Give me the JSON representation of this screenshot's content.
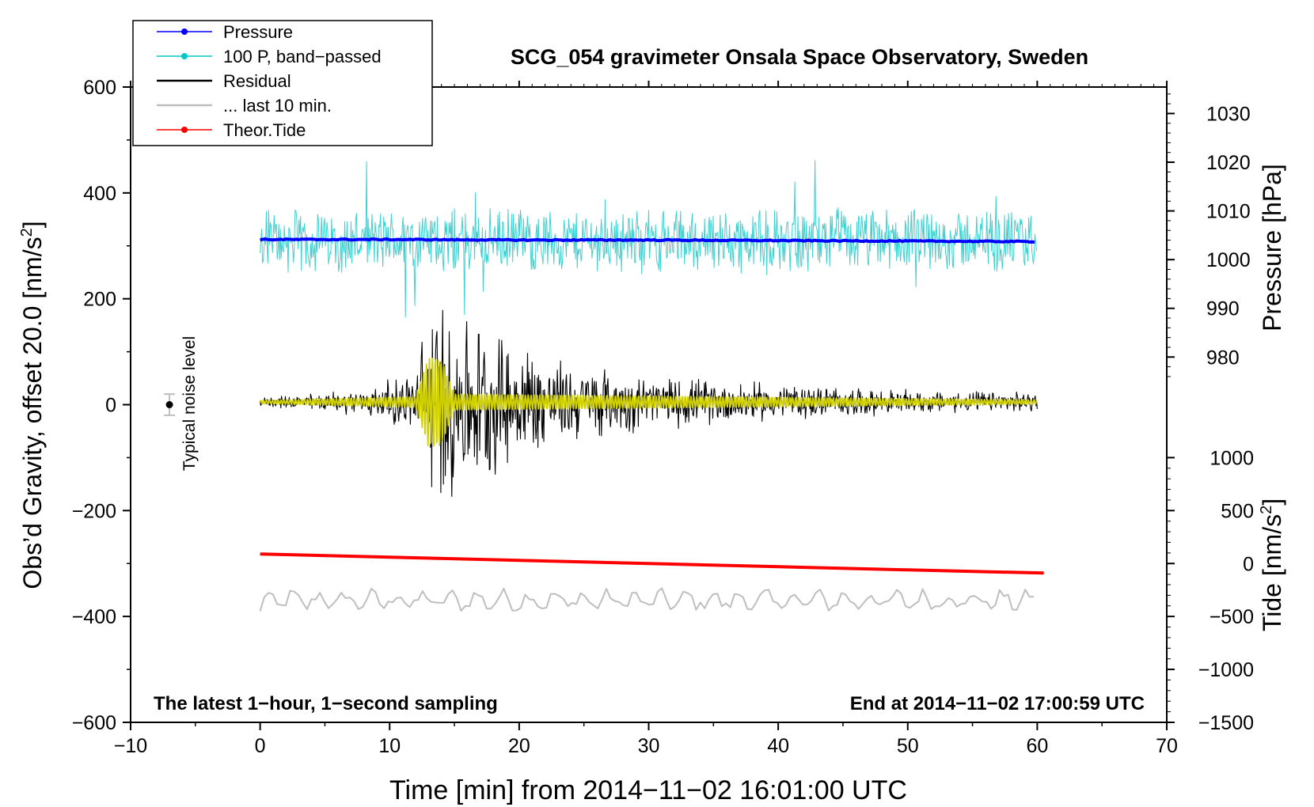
{
  "chart_data": {
    "type": "line",
    "title": "SCG_054 gravimeter Onsala Space Observatory, Sweden",
    "xlabel": "Time [min] from 2014−11−02 16:01:00 UTC",
    "ylabel_left_main": "Obs’d Gravity, offset 20.0 [nm/s",
    "ylabel_left_sup": "2",
    "ylabel_left_close": "]",
    "ylabel_pressure": "Pressure [hPa]",
    "ylabel_tide_main": "Tide [nm/s",
    "ylabel_tide_sup": "2",
    "ylabel_tide_close": "]",
    "xlim": [
      -10,
      70
    ],
    "ylim": [
      -600,
      600
    ],
    "x_ticks": [
      "−10",
      "0",
      "10",
      "20",
      "30",
      "40",
      "50",
      "60",
      "70"
    ],
    "y_ticks": [
      "−600",
      "−400",
      "−200",
      "0",
      "200",
      "400",
      "600"
    ],
    "pressure_ticks": [
      "1030",
      "1020",
      "1010",
      "1000",
      "990",
      "980"
    ],
    "tide_ticks": [
      "1000",
      "500",
      "0",
      "−500",
      "−1000",
      "−1500"
    ],
    "pressure_axis": {
      "ticks": [
        1030,
        1020,
        1010,
        1000,
        990,
        980
      ],
      "gravity_equiv": [
        550,
        458,
        366,
        274,
        182,
        90
      ]
    },
    "tide_axis": {
      "ticks": [
        1000,
        500,
        0,
        -500,
        -1000,
        -1500
      ],
      "gravity_equiv": [
        -100,
        -200,
        -300,
        -400,
        -500,
        -600
      ]
    },
    "annotation_left": "The latest 1−hour, 1−second sampling",
    "annotation_right": "End at 2014−11−02 17:00:59 UTC",
    "noise_label": "Typical noise level",
    "noise_bar": {
      "x": -7,
      "y": 0,
      "err": 20
    },
    "legend": [
      {
        "label": "Pressure",
        "color": "#0000ff",
        "marker": true
      },
      {
        "label": "100 P, band−passed",
        "color": "#00c8c8",
        "marker": true
      },
      {
        "label": "Residual",
        "color": "#000000",
        "marker": false
      },
      {
        "label": "... last 10 min.",
        "color": "#bebebe",
        "marker": false
      },
      {
        "label": "Theor.Tide",
        "color": "#ff0000",
        "marker": true
      }
    ],
    "series": [
      {
        "name": "Pressure",
        "color": "#0000ff",
        "x": [
          0,
          10,
          20,
          30,
          40,
          50,
          60
        ],
        "values": [
          312,
          312,
          311,
          311,
          310,
          309,
          308
        ]
      },
      {
        "name": "100 P, band-passed",
        "color": "#40d0d0",
        "x": [
          0,
          60
        ],
        "values": [
          310,
          310
        ],
        "amplitude": 55
      },
      {
        "name": "Residual",
        "color": "#000000",
        "x": [
          0,
          8,
          12,
          13,
          14,
          17,
          20,
          23,
          30,
          40,
          50,
          60
        ],
        "values": [
          5,
          5,
          5,
          5,
          5,
          5,
          5,
          5,
          5,
          5,
          5,
          5
        ],
        "amplitude": [
          8,
          25,
          60,
          190,
          200,
          150,
          120,
          80,
          50,
          35,
          22,
          18
        ]
      },
      {
        "name": "Yellow filtered",
        "color": "#d0d000",
        "x": [
          0,
          12,
          13,
          14,
          15,
          60
        ],
        "values": [
          5,
          5,
          5,
          5,
          5,
          5
        ],
        "amplitude": [
          3,
          10,
          85,
          80,
          15,
          4
        ]
      },
      {
        "name": "Theor.Tide",
        "color": "#ff0000",
        "x": [
          0,
          10,
          20,
          30,
          40,
          50,
          60.5
        ],
        "values": [
          -282,
          -288,
          -294,
          -300,
          -306,
          -312,
          -318
        ]
      },
      {
        "name": "... last 10 min.",
        "color": "#bebebe",
        "x": [
          0,
          60
        ],
        "values": [
          -370,
          -370
        ],
        "amplitude": 22
      }
    ]
  }
}
